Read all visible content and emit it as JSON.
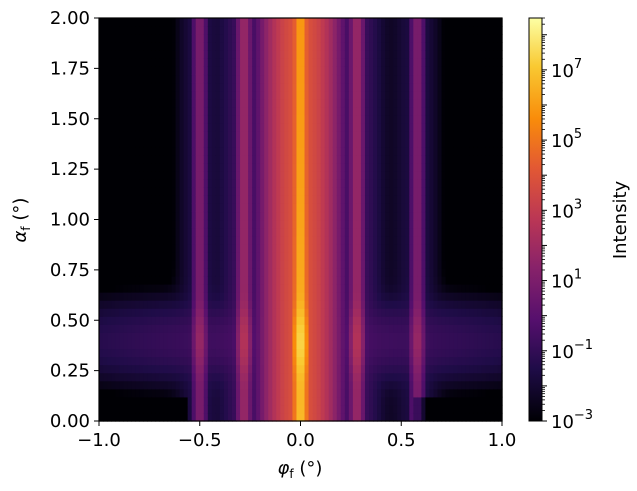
{
  "chart_data": {
    "type": "heatmap",
    "title": "",
    "colormap": "inferno",
    "color_scale": "log",
    "xlabel": "φf (°)",
    "xlabel_parts": {
      "sym": "φ",
      "sub": "f",
      "unit": " (°)"
    },
    "ylabel": "αf (°)",
    "ylabel_parts": {
      "sym": "α",
      "sub": "f",
      "unit": " (°)"
    },
    "xlim": [
      -1.0,
      1.0
    ],
    "ylim": [
      0.0,
      2.0
    ],
    "xticks": [
      -1.0,
      -0.5,
      0.0,
      0.5,
      1.0
    ],
    "xtick_labels": [
      "−1.0",
      "−0.5",
      "0.0",
      "0.5",
      "1.0"
    ],
    "yticks": [
      0.0,
      0.25,
      0.5,
      0.75,
      1.0,
      1.25,
      1.5,
      1.75,
      2.0
    ],
    "ytick_labels": [
      "0.00",
      "0.25",
      "0.50",
      "0.75",
      "1.00",
      "1.25",
      "1.50",
      "1.75",
      "2.00"
    ],
    "colorbar": {
      "label": "Intensity",
      "range": [
        0.001,
        300000000
      ],
      "ticks": [
        0.001,
        0.1,
        10,
        1000,
        100000,
        10000000
      ],
      "tick_labels": [
        {
          "base": "10",
          "exp": "−3"
        },
        {
          "base": "10",
          "exp": "−1"
        },
        {
          "base": "10",
          "exp": "1"
        },
        {
          "base": "10",
          "exp": "3"
        },
        {
          "base": "10",
          "exp": "5"
        },
        {
          "base": "10",
          "exp": "7"
        }
      ]
    },
    "rods": [
      {
        "phi": 0.0,
        "peak_log_intensity": 6.5
      },
      {
        "phi": -0.28,
        "peak_log_intensity": 1.8
      },
      {
        "phi": 0.28,
        "peak_log_intensity": 1.8
      },
      {
        "phi": -0.5,
        "peak_log_intensity": 1.0
      },
      {
        "phi": 0.58,
        "peak_log_intensity": 1.0
      }
    ],
    "yoneda_band_alpha": 0.4
  }
}
